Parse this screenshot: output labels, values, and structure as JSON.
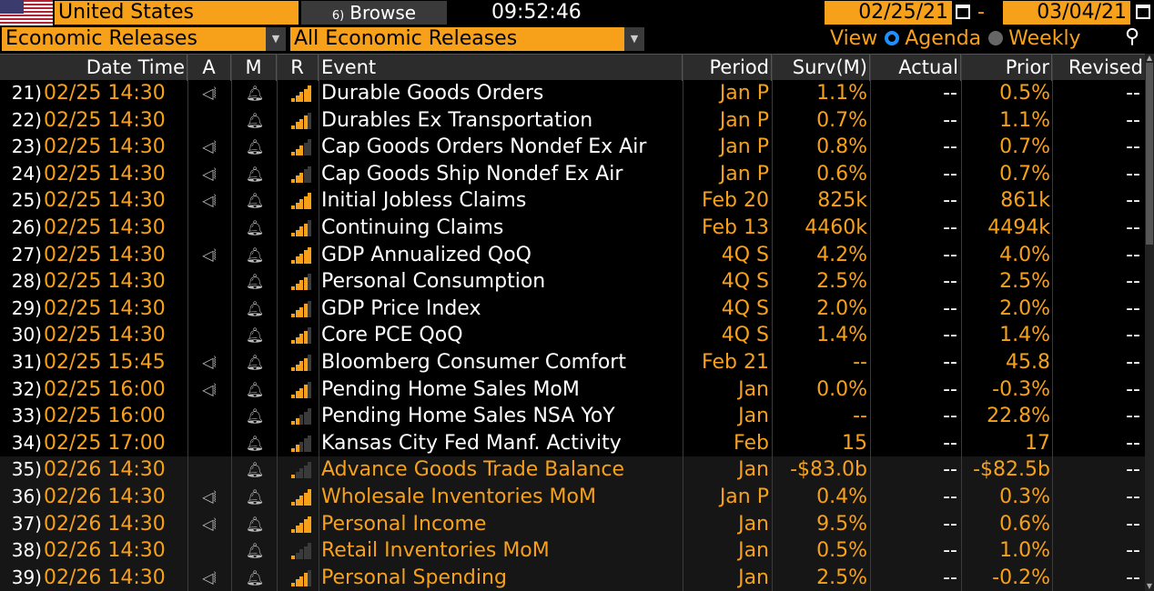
{
  "header": {
    "country": "United States",
    "browse_num": "6)",
    "browse_label": "Browse",
    "time": "09:52:46",
    "start_date": "02/25/21",
    "end_date": "03/04/21",
    "date_separator": "-"
  },
  "filters": {
    "category": "Economic Releases",
    "subcategory": "All Economic Releases",
    "view_label": "View",
    "view_agenda": "Agenda",
    "view_weekly": "Weekly"
  },
  "columns": {
    "datetime": "Date Time",
    "a": "A",
    "m": "M",
    "r": "R",
    "event": "Event",
    "period": "Period",
    "surv": "Surv(M)",
    "actual": "Actual",
    "prior": "Prior",
    "revised": "Revised"
  },
  "colors": {
    "accent": "#f7a11a",
    "blue": "#1e90ff",
    "row_alt": "#161616"
  },
  "rows": [
    {
      "idx": "21)",
      "dt": "02/25 14:30",
      "alert": true,
      "ev": "Durable Goods Orders",
      "period": "Jan P",
      "surv": "1.1%",
      "actual": "--",
      "prior": "0.5%",
      "revised": "--",
      "rel": 5,
      "future": false
    },
    {
      "idx": "22)",
      "dt": "02/25 14:30",
      "alert": false,
      "ev": "Durables Ex Transportation",
      "period": "Jan P",
      "surv": "0.7%",
      "actual": "--",
      "prior": "1.1%",
      "revised": "--",
      "rel": 4,
      "future": false
    },
    {
      "idx": "23)",
      "dt": "02/25 14:30",
      "alert": true,
      "ev": "Cap Goods Orders Nondef Ex Air",
      "period": "Jan P",
      "surv": "0.8%",
      "actual": "--",
      "prior": "0.7%",
      "revised": "--",
      "rel": 3,
      "future": false
    },
    {
      "idx": "24)",
      "dt": "02/25 14:30",
      "alert": true,
      "ev": "Cap Goods Ship Nondef Ex Air",
      "period": "Jan P",
      "surv": "0.6%",
      "actual": "--",
      "prior": "0.7%",
      "revised": "--",
      "rel": 3,
      "future": false
    },
    {
      "idx": "25)",
      "dt": "02/25 14:30",
      "alert": true,
      "ev": "Initial Jobless Claims",
      "period": "Feb 20",
      "surv": "825k",
      "actual": "--",
      "prior": "861k",
      "revised": "--",
      "rel": 5,
      "future": false
    },
    {
      "idx": "26)",
      "dt": "02/25 14:30",
      "alert": false,
      "ev": "Continuing Claims",
      "period": "Feb 13",
      "surv": "4460k",
      "actual": "--",
      "prior": "4494k",
      "revised": "--",
      "rel": 4,
      "future": false
    },
    {
      "idx": "27)",
      "dt": "02/25 14:30",
      "alert": true,
      "ev": "GDP Annualized QoQ",
      "period": "4Q S",
      "surv": "4.2%",
      "actual": "--",
      "prior": "4.0%",
      "revised": "--",
      "rel": 5,
      "future": false
    },
    {
      "idx": "28)",
      "dt": "02/25 14:30",
      "alert": false,
      "ev": "Personal Consumption",
      "period": "4Q S",
      "surv": "2.5%",
      "actual": "--",
      "prior": "2.5%",
      "revised": "--",
      "rel": 4,
      "future": false
    },
    {
      "idx": "29)",
      "dt": "02/25 14:30",
      "alert": false,
      "ev": "GDP Price Index",
      "period": "4Q S",
      "surv": "2.0%",
      "actual": "--",
      "prior": "2.0%",
      "revised": "--",
      "rel": 4,
      "future": false
    },
    {
      "idx": "30)",
      "dt": "02/25 14:30",
      "alert": false,
      "ev": "Core PCE QoQ",
      "period": "4Q S",
      "surv": "1.4%",
      "actual": "--",
      "prior": "1.4%",
      "revised": "--",
      "rel": 4,
      "future": false
    },
    {
      "idx": "31)",
      "dt": "02/25 15:45",
      "alert": true,
      "ev": "Bloomberg Consumer Comfort",
      "period": "Feb 21",
      "surv": "--",
      "actual": "--",
      "prior": "45.8",
      "revised": "--",
      "rel": 4,
      "future": false
    },
    {
      "idx": "32)",
      "dt": "02/25 16:00",
      "alert": true,
      "ev": "Pending Home Sales MoM",
      "period": "Jan",
      "surv": "0.0%",
      "actual": "--",
      "prior": "-0.3%",
      "revised": "--",
      "rel": 4,
      "future": false
    },
    {
      "idx": "33)",
      "dt": "02/25 16:00",
      "alert": false,
      "ev": "Pending Home Sales NSA YoY",
      "period": "Jan",
      "surv": "--",
      "actual": "--",
      "prior": "22.8%",
      "revised": "--",
      "rel": 2,
      "future": false
    },
    {
      "idx": "34)",
      "dt": "02/25 17:00",
      "alert": false,
      "ev": "Kansas City Fed Manf. Activity",
      "period": "Feb",
      "surv": "15",
      "actual": "--",
      "prior": "17",
      "revised": "--",
      "rel": 2,
      "future": false
    },
    {
      "idx": "35)",
      "dt": "02/26 14:30",
      "alert": false,
      "ev": "Advance Goods Trade Balance",
      "period": "Jan",
      "surv": "-$83.0b",
      "actual": "--",
      "prior": "-$82.5b",
      "revised": "--",
      "rel": 1,
      "future": true
    },
    {
      "idx": "36)",
      "dt": "02/26 14:30",
      "alert": true,
      "ev": "Wholesale Inventories MoM",
      "period": "Jan P",
      "surv": "0.4%",
      "actual": "--",
      "prior": "0.3%",
      "revised": "--",
      "rel": 5,
      "future": true
    },
    {
      "idx": "37)",
      "dt": "02/26 14:30",
      "alert": true,
      "ev": "Personal Income",
      "period": "Jan",
      "surv": "9.5%",
      "actual": "--",
      "prior": "0.6%",
      "revised": "--",
      "rel": 5,
      "future": true
    },
    {
      "idx": "38)",
      "dt": "02/26 14:30",
      "alert": false,
      "ev": "Retail Inventories MoM",
      "period": "Jan",
      "surv": "0.5%",
      "actual": "--",
      "prior": "1.0%",
      "revised": "--",
      "rel": 1,
      "future": true
    },
    {
      "idx": "39)",
      "dt": "02/26 14:30",
      "alert": true,
      "ev": "Personal Spending",
      "period": "Jan",
      "surv": "2.5%",
      "actual": "--",
      "prior": "-0.2%",
      "revised": "--",
      "rel": 4,
      "future": true
    }
  ]
}
